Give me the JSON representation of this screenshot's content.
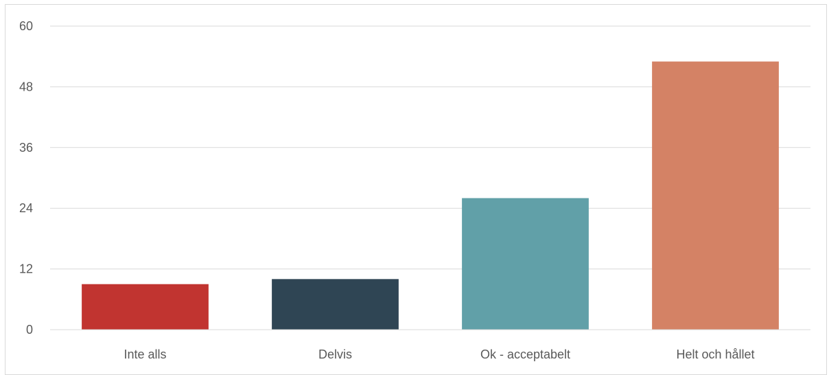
{
  "chart_data": {
    "type": "bar",
    "title": "",
    "xlabel": "",
    "ylabel": "",
    "categories": [
      "Inte alls",
      "Delvis",
      "Ok - acceptabelt",
      "Helt och hållet"
    ],
    "values": [
      9,
      10,
      26,
      53
    ],
    "colors": [
      "#c13430",
      "#2f4554",
      "#61a0a8",
      "#d48265"
    ],
    "ylim": [
      0,
      60
    ],
    "yticks": [
      0,
      12,
      24,
      36,
      48,
      60
    ],
    "grid": true,
    "legend": "none"
  }
}
